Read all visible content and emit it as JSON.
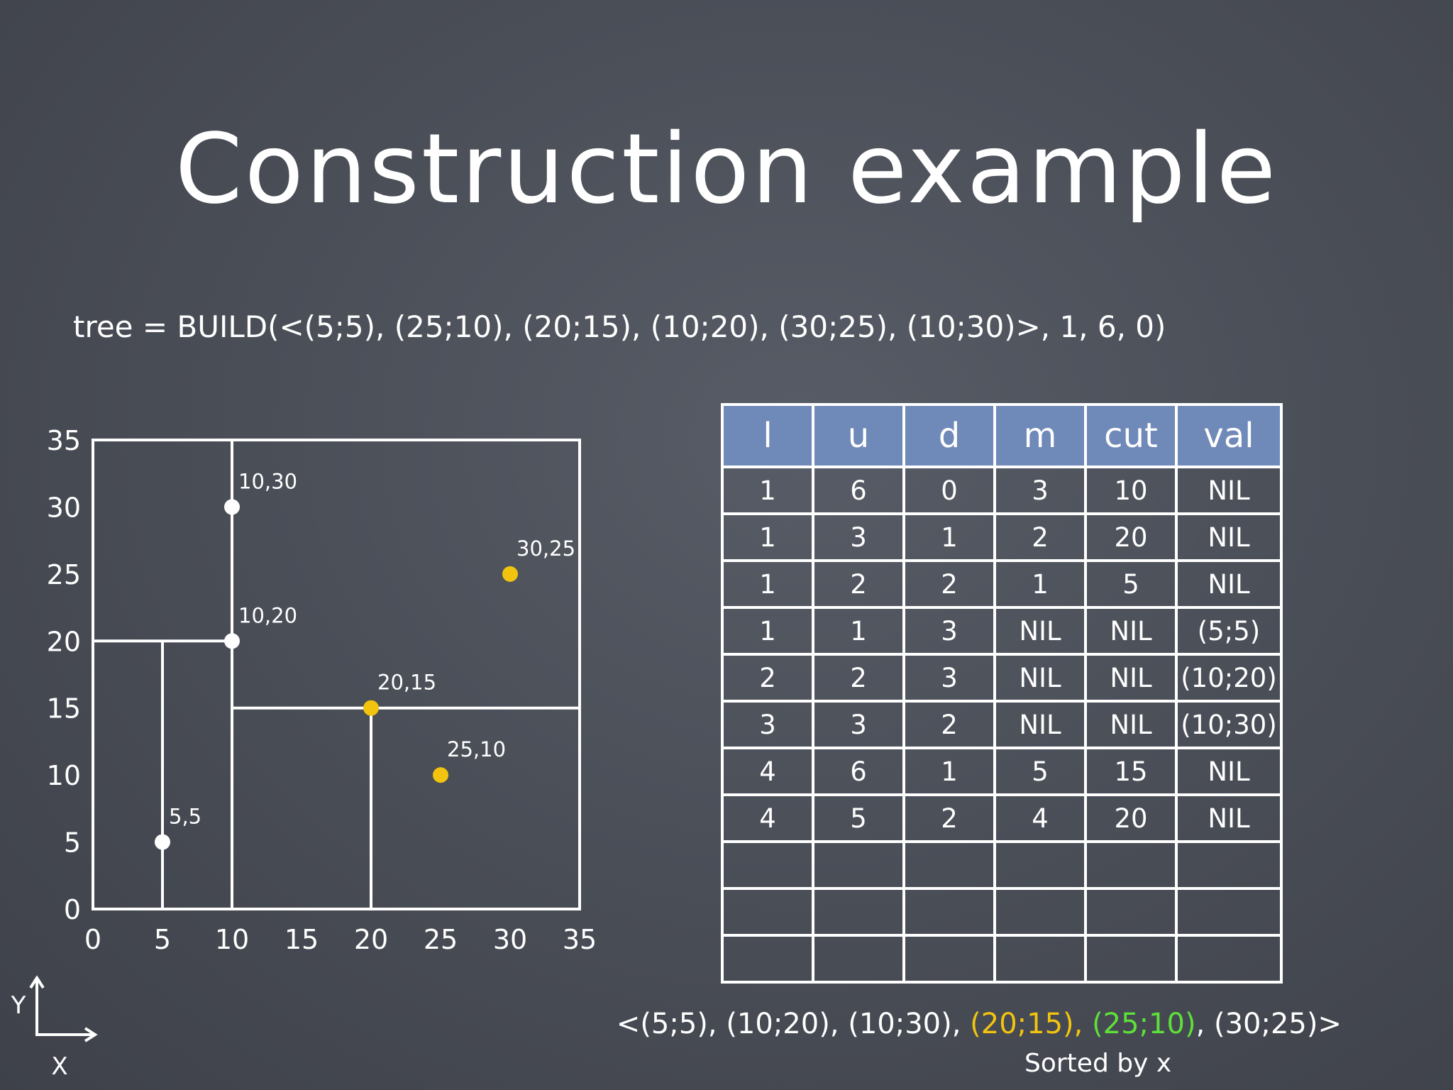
{
  "title": "Construction example",
  "code": "tree = BUILD(<(5;5), (25;10), (20;15), (10;20), (30;25), (10;30)>, 1, 6, 0)",
  "chart_data": {
    "type": "scatter",
    "xlim": [
      0,
      35
    ],
    "ylim": [
      0,
      35
    ],
    "x_ticks": [
      "0",
      "5",
      "10",
      "15",
      "20",
      "25",
      "30",
      "35"
    ],
    "y_ticks": [
      "0",
      "5",
      "10",
      "15",
      "20",
      "25",
      "30",
      "35"
    ],
    "points": [
      {
        "x": 5,
        "y": 5,
        "label": "5,5",
        "color": "#ffffff"
      },
      {
        "x": 10,
        "y": 20,
        "label": "10,20",
        "color": "#ffffff"
      },
      {
        "x": 10,
        "y": 30,
        "label": "10,30",
        "color": "#ffffff"
      },
      {
        "x": 20,
        "y": 15,
        "label": "20,15",
        "color": "#f2c40f"
      },
      {
        "x": 25,
        "y": 10,
        "label": "25,10",
        "color": "#f2c40f"
      },
      {
        "x": 30,
        "y": 25,
        "label": "30,25",
        "color": "#f2c40f"
      }
    ],
    "split_lines": [
      {
        "orientation": "vertical",
        "at": 10,
        "from": 0,
        "to": 35
      },
      {
        "orientation": "horizontal",
        "at": 20,
        "from": 0,
        "to": 10
      },
      {
        "orientation": "vertical",
        "at": 5,
        "from": 0,
        "to": 20
      },
      {
        "orientation": "horizontal",
        "at": 15,
        "from": 10,
        "to": 35
      },
      {
        "orientation": "vertical",
        "at": 20,
        "from": 0,
        "to": 15
      }
    ]
  },
  "axes_icon": {
    "y": "Y",
    "x": "X"
  },
  "table": {
    "headers": [
      "l",
      "u",
      "d",
      "m",
      "cut",
      "val"
    ],
    "rows": [
      [
        "1",
        "6",
        "0",
        "3",
        "10",
        "NIL"
      ],
      [
        "1",
        "3",
        "1",
        "2",
        "20",
        "NIL"
      ],
      [
        "1",
        "2",
        "2",
        "1",
        "5",
        "NIL"
      ],
      [
        "1",
        "1",
        "3",
        "NIL",
        "NIL",
        "(5;5)"
      ],
      [
        "2",
        "2",
        "3",
        "NIL",
        "NIL",
        "(10;20)"
      ],
      [
        "3",
        "3",
        "2",
        "NIL",
        "NIL",
        "(10;30)"
      ],
      [
        "4",
        "6",
        "1",
        "5",
        "15",
        "NIL"
      ],
      [
        "4",
        "5",
        "2",
        "4",
        "20",
        "NIL"
      ],
      [
        "",
        "",
        "",
        "",
        "",
        ""
      ],
      [
        "",
        "",
        "",
        "",
        "",
        ""
      ],
      [
        "",
        "",
        "",
        "",
        "",
        ""
      ]
    ]
  },
  "sorted": {
    "p1": "<(5;5), (10;20), (10;30), ",
    "p2": "(20;15), ",
    "p3": "(25;10)",
    "p4": ", (30;25)>",
    "caption": "Sorted by x",
    "highlight_yellow": "#f2c40f",
    "highlight_green": "#5ee03a"
  }
}
